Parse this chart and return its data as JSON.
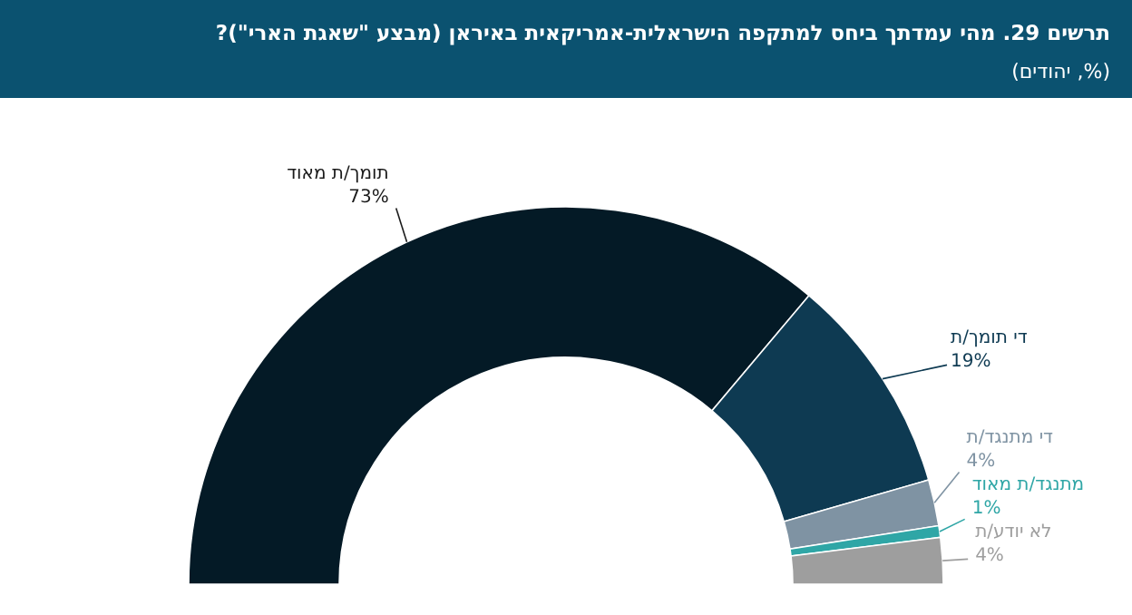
{
  "chart_data": {
    "type": "donut",
    "title": "תרשים 29. מהי עמדתך ביחס למתקפה הישראלית-אמריקאית באיראן (מבצע \"שאגת הארי\")?",
    "subtitle": "(%, יהודים)",
    "categories": [
      "תומך/ת מאוד",
      "די תומך/ת",
      "די מתנגד/ת",
      "מתנגד/ת מאוד",
      "לא יודע/ת"
    ],
    "values": [
      73,
      19,
      4,
      1,
      4
    ],
    "value_labels": [
      "73%",
      "19%",
      "4%",
      "1%",
      "4%"
    ],
    "colors": [
      "#041a26",
      "#0e3a52",
      "#7f93a3",
      "#2fa6a6",
      "#9e9e9e"
    ]
  }
}
